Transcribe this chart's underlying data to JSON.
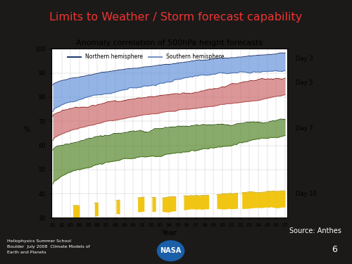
{
  "title": "Limits to Weather / Storm forecast capability",
  "chart_title": "Anomaly correlation of 500hPa height forecasts",
  "xlabel": "Year",
  "ylabel": "%",
  "xlim": [
    1981,
    2007
  ],
  "ylim": [
    30,
    100
  ],
  "yticks": [
    30,
    40,
    50,
    60,
    70,
    80,
    90,
    100
  ],
  "background_color": "#1c1a18",
  "chart_bg": "#ffffff",
  "title_color": "#ee3333",
  "day3_color": "#5b8dd9",
  "day5_color": "#c96060",
  "day7_color": "#5a8a30",
  "day10_color": "#f0c000",
  "source_text": "Source: Anthes",
  "page_num": "6",
  "legend_NH": "Northern hemisphere",
  "legend_SH": "Southern hemisphere"
}
